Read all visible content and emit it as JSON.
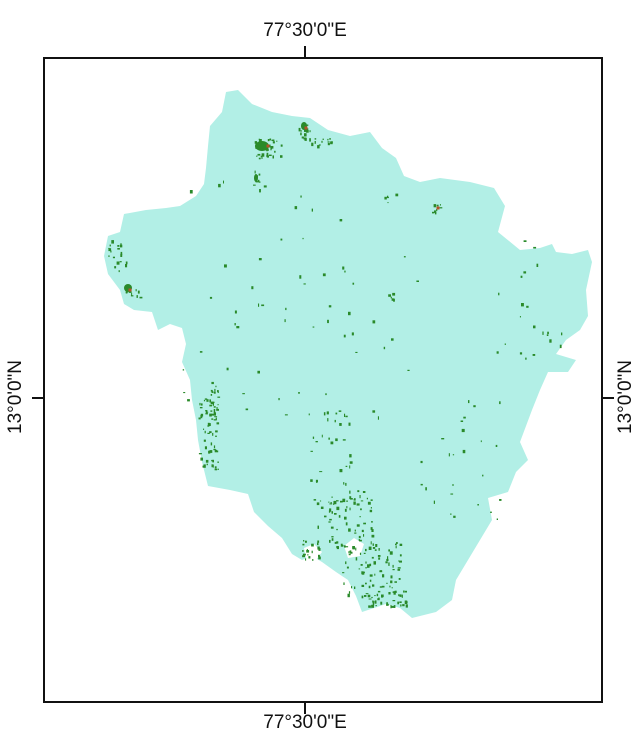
{
  "map": {
    "longitude_label": "77°30'0\"E",
    "latitude_label": "13°0'0\"N"
  },
  "colors": {
    "base_region": "#b2efe6",
    "patches": "#2a8a2a",
    "hotspots": "#b5532a",
    "frame": "#111111",
    "background": "#ffffff"
  }
}
